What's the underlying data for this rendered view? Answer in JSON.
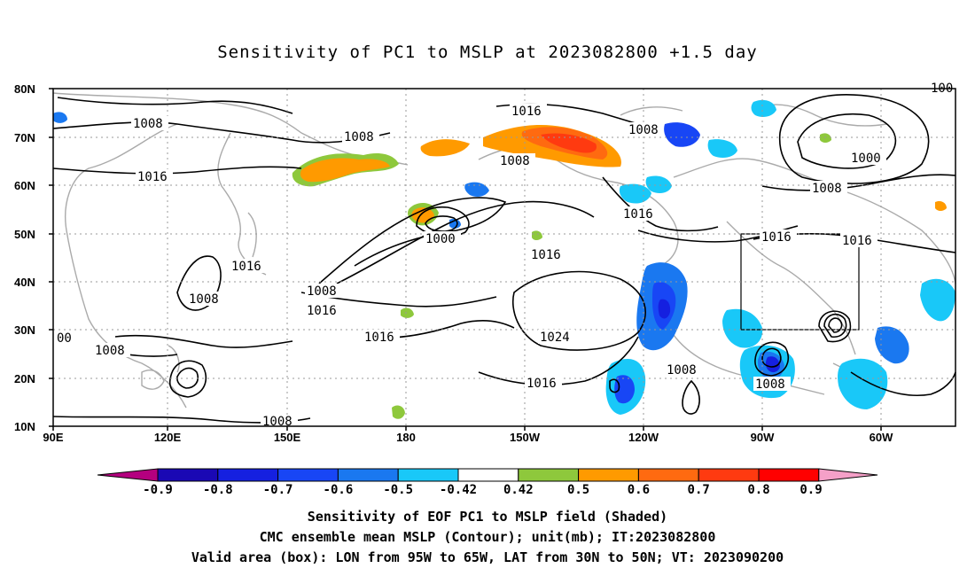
{
  "title": "Sensitivity of PC1 to MSLP at 2023082800 +1.5 day",
  "lat_labels": [
    "80N",
    "70N",
    "60N",
    "50N",
    "40N",
    "30N",
    "20N",
    "10N"
  ],
  "lon_labels": [
    "90E",
    "120E",
    "150E",
    "180",
    "150W",
    "120W",
    "90W",
    "60W"
  ],
  "contour_labels": [
    "1008",
    "1008",
    "1016",
    "1016",
    "1008",
    "1008",
    "1016",
    "1016",
    "1008",
    "1008",
    "1016",
    "1016",
    "1016",
    "1008",
    "1016",
    "1016",
    "1000",
    "1016",
    "1024",
    "1016",
    "1016",
    "1008",
    "1008",
    "1000",
    "1008",
    "00",
    "1008",
    "100"
  ],
  "colorbar": {
    "labels": [
      "-0.9",
      "-0.8",
      "-0.7",
      "-0.6",
      "-0.5",
      "-0.42",
      "0.42",
      "0.5",
      "0.6",
      "0.7",
      "0.8",
      "0.9"
    ],
    "colors": [
      "#b4007f",
      "#1a08b4",
      "#1520e0",
      "#1846f5",
      "#1a78f0",
      "#19c8f8",
      "#ffffff",
      "#8ec83c",
      "#ff9a00",
      "#ff6a10",
      "#ff3a10",
      "#ff0000",
      "#f5a0c8"
    ]
  },
  "captions": {
    "line1": "Sensitivity of EOF PC1 to MSLP field (Shaded)",
    "line2": "CMC ensemble mean MSLP (Contour); unit(mb); IT:2023082800",
    "line3": "Valid area (box): LON from 95W to 65W, LAT from 30N to 50N; VT: 2023090200"
  }
}
